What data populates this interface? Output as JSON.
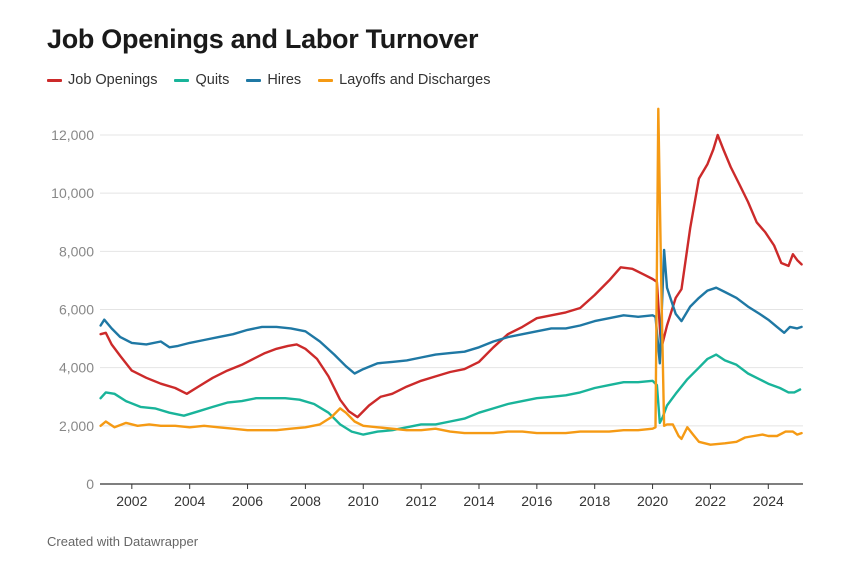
{
  "title": "Job Openings and Labor Turnover",
  "footer": "Created with Datawrapper",
  "legend": [
    {
      "name": "Job Openings",
      "color": "#cc2a2a"
    },
    {
      "name": "Quits",
      "color": "#19b49a"
    },
    {
      "name": "Hires",
      "color": "#1f78a4"
    },
    {
      "name": "Layoffs and Discharges",
      "color": "#f59a14"
    }
  ],
  "chart_data": {
    "type": "line",
    "title": "Job Openings and Labor Turnover",
    "xlabel": "",
    "ylabel": "",
    "ylim": [
      0,
      12000
    ],
    "xlim": [
      2000.9,
      2025.2
    ],
    "grid": true,
    "legend_position": "top-left",
    "x_ticks": [
      2002,
      2004,
      2006,
      2008,
      2010,
      2012,
      2014,
      2016,
      2018,
      2020,
      2022,
      2024
    ],
    "y_ticks": [
      0,
      2000,
      4000,
      6000,
      8000,
      10000,
      12000
    ],
    "y_tick_labels": [
      "0",
      "2,000",
      "4,000",
      "6,000",
      "8,000",
      "10,000",
      "12,000"
    ],
    "series": [
      {
        "name": "Job Openings",
        "color": "#cc2a2a",
        "points": [
          [
            2000.92,
            5150
          ],
          [
            2001.1,
            5200
          ],
          [
            2001.3,
            4800
          ],
          [
            2001.6,
            4400
          ],
          [
            2002.0,
            3900
          ],
          [
            2002.5,
            3650
          ],
          [
            2003.0,
            3450
          ],
          [
            2003.5,
            3300
          ],
          [
            2003.9,
            3100
          ],
          [
            2004.3,
            3350
          ],
          [
            2004.8,
            3650
          ],
          [
            2005.3,
            3900
          ],
          [
            2005.8,
            4100
          ],
          [
            2006.2,
            4300
          ],
          [
            2006.6,
            4500
          ],
          [
            2007.0,
            4650
          ],
          [
            2007.4,
            4750
          ],
          [
            2007.7,
            4800
          ],
          [
            2008.0,
            4650
          ],
          [
            2008.4,
            4300
          ],
          [
            2008.8,
            3700
          ],
          [
            2009.2,
            2900
          ],
          [
            2009.5,
            2500
          ],
          [
            2009.8,
            2300
          ],
          [
            2010.2,
            2700
          ],
          [
            2010.6,
            3000
          ],
          [
            2011.0,
            3100
          ],
          [
            2011.5,
            3350
          ],
          [
            2012.0,
            3550
          ],
          [
            2012.5,
            3700
          ],
          [
            2013.0,
            3850
          ],
          [
            2013.5,
            3950
          ],
          [
            2014.0,
            4200
          ],
          [
            2014.5,
            4700
          ],
          [
            2015.0,
            5150
          ],
          [
            2015.5,
            5400
          ],
          [
            2016.0,
            5700
          ],
          [
            2016.5,
            5800
          ],
          [
            2017.0,
            5900
          ],
          [
            2017.5,
            6050
          ],
          [
            2018.0,
            6500
          ],
          [
            2018.5,
            7000
          ],
          [
            2018.9,
            7450
          ],
          [
            2019.3,
            7400
          ],
          [
            2019.7,
            7200
          ],
          [
            2020.0,
            7050
          ],
          [
            2020.15,
            6950
          ],
          [
            2020.3,
            4650
          ],
          [
            2020.5,
            5450
          ],
          [
            2020.8,
            6400
          ],
          [
            2021.0,
            6700
          ],
          [
            2021.3,
            8800
          ],
          [
            2021.6,
            10500
          ],
          [
            2021.9,
            11000
          ],
          [
            2022.1,
            11500
          ],
          [
            2022.25,
            12000
          ],
          [
            2022.45,
            11500
          ],
          [
            2022.7,
            10900
          ],
          [
            2023.0,
            10300
          ],
          [
            2023.3,
            9700
          ],
          [
            2023.6,
            9000
          ],
          [
            2023.9,
            8650
          ],
          [
            2024.2,
            8200
          ],
          [
            2024.45,
            7600
          ],
          [
            2024.7,
            7500
          ],
          [
            2024.85,
            7900
          ],
          [
            2025.0,
            7700
          ],
          [
            2025.15,
            7550
          ]
        ]
      },
      {
        "name": "Quits",
        "color": "#19b49a",
        "points": [
          [
            2000.92,
            2950
          ],
          [
            2001.1,
            3150
          ],
          [
            2001.4,
            3100
          ],
          [
            2001.8,
            2850
          ],
          [
            2002.3,
            2650
          ],
          [
            2002.8,
            2600
          ],
          [
            2003.3,
            2450
          ],
          [
            2003.8,
            2350
          ],
          [
            2004.3,
            2500
          ],
          [
            2004.8,
            2650
          ],
          [
            2005.3,
            2800
          ],
          [
            2005.8,
            2850
          ],
          [
            2006.3,
            2950
          ],
          [
            2006.8,
            2950
          ],
          [
            2007.3,
            2950
          ],
          [
            2007.8,
            2900
          ],
          [
            2008.3,
            2750
          ],
          [
            2008.8,
            2450
          ],
          [
            2009.2,
            2050
          ],
          [
            2009.6,
            1800
          ],
          [
            2010.0,
            1700
          ],
          [
            2010.5,
            1800
          ],
          [
            2011.0,
            1850
          ],
          [
            2011.5,
            1950
          ],
          [
            2012.0,
            2050
          ],
          [
            2012.5,
            2050
          ],
          [
            2013.0,
            2150
          ],
          [
            2013.5,
            2250
          ],
          [
            2014.0,
            2450
          ],
          [
            2014.5,
            2600
          ],
          [
            2015.0,
            2750
          ],
          [
            2015.5,
            2850
          ],
          [
            2016.0,
            2950
          ],
          [
            2016.5,
            3000
          ],
          [
            2017.0,
            3050
          ],
          [
            2017.5,
            3150
          ],
          [
            2018.0,
            3300
          ],
          [
            2018.5,
            3400
          ],
          [
            2019.0,
            3500
          ],
          [
            2019.5,
            3500
          ],
          [
            2020.0,
            3550
          ],
          [
            2020.15,
            3400
          ],
          [
            2020.25,
            2100
          ],
          [
            2020.35,
            2300
          ],
          [
            2020.5,
            2700
          ],
          [
            2020.8,
            3100
          ],
          [
            2021.2,
            3600
          ],
          [
            2021.6,
            4000
          ],
          [
            2021.9,
            4300
          ],
          [
            2022.2,
            4450
          ],
          [
            2022.5,
            4250
          ],
          [
            2022.9,
            4100
          ],
          [
            2023.3,
            3800
          ],
          [
            2023.7,
            3600
          ],
          [
            2024.0,
            3450
          ],
          [
            2024.4,
            3300
          ],
          [
            2024.7,
            3150
          ],
          [
            2024.9,
            3150
          ],
          [
            2025.1,
            3250
          ]
        ]
      },
      {
        "name": "Hires",
        "color": "#1f78a4",
        "points": [
          [
            2000.92,
            5450
          ],
          [
            2001.05,
            5650
          ],
          [
            2001.3,
            5350
          ],
          [
            2001.6,
            5050
          ],
          [
            2002.0,
            4850
          ],
          [
            2002.5,
            4800
          ],
          [
            2003.0,
            4900
          ],
          [
            2003.3,
            4700
          ],
          [
            2003.6,
            4750
          ],
          [
            2004.0,
            4850
          ],
          [
            2004.5,
            4950
          ],
          [
            2005.0,
            5050
          ],
          [
            2005.5,
            5150
          ],
          [
            2006.0,
            5300
          ],
          [
            2006.5,
            5400
          ],
          [
            2007.0,
            5400
          ],
          [
            2007.5,
            5350
          ],
          [
            2008.0,
            5250
          ],
          [
            2008.5,
            4900
          ],
          [
            2009.0,
            4450
          ],
          [
            2009.4,
            4050
          ],
          [
            2009.7,
            3800
          ],
          [
            2010.0,
            3950
          ],
          [
            2010.5,
            4150
          ],
          [
            2011.0,
            4200
          ],
          [
            2011.5,
            4250
          ],
          [
            2012.0,
            4350
          ],
          [
            2012.5,
            4450
          ],
          [
            2013.0,
            4500
          ],
          [
            2013.5,
            4550
          ],
          [
            2014.0,
            4700
          ],
          [
            2014.5,
            4900
          ],
          [
            2015.0,
            5050
          ],
          [
            2015.5,
            5150
          ],
          [
            2016.0,
            5250
          ],
          [
            2016.5,
            5350
          ],
          [
            2017.0,
            5350
          ],
          [
            2017.5,
            5450
          ],
          [
            2018.0,
            5600
          ],
          [
            2018.5,
            5700
          ],
          [
            2019.0,
            5800
          ],
          [
            2019.5,
            5750
          ],
          [
            2020.0,
            5800
          ],
          [
            2020.1,
            5750
          ],
          [
            2020.25,
            4150
          ],
          [
            2020.4,
            8050
          ],
          [
            2020.5,
            6750
          ],
          [
            2020.8,
            5850
          ],
          [
            2021.0,
            5600
          ],
          [
            2021.3,
            6100
          ],
          [
            2021.6,
            6400
          ],
          [
            2021.9,
            6650
          ],
          [
            2022.2,
            6750
          ],
          [
            2022.5,
            6600
          ],
          [
            2022.9,
            6400
          ],
          [
            2023.3,
            6100
          ],
          [
            2023.7,
            5850
          ],
          [
            2024.0,
            5650
          ],
          [
            2024.3,
            5400
          ],
          [
            2024.55,
            5200
          ],
          [
            2024.75,
            5400
          ],
          [
            2025.0,
            5350
          ],
          [
            2025.15,
            5400
          ]
        ]
      },
      {
        "name": "Layoffs and Discharges",
        "color": "#f59a14",
        "points": [
          [
            2000.92,
            2000
          ],
          [
            2001.1,
            2150
          ],
          [
            2001.4,
            1950
          ],
          [
            2001.8,
            2100
          ],
          [
            2002.2,
            2000
          ],
          [
            2002.6,
            2050
          ],
          [
            2003.0,
            2000
          ],
          [
            2003.5,
            2000
          ],
          [
            2004.0,
            1950
          ],
          [
            2004.5,
            2000
          ],
          [
            2005.0,
            1950
          ],
          [
            2005.5,
            1900
          ],
          [
            2006.0,
            1850
          ],
          [
            2006.5,
            1850
          ],
          [
            2007.0,
            1850
          ],
          [
            2007.5,
            1900
          ],
          [
            2008.0,
            1950
          ],
          [
            2008.5,
            2050
          ],
          [
            2008.9,
            2300
          ],
          [
            2009.2,
            2600
          ],
          [
            2009.4,
            2450
          ],
          [
            2009.7,
            2150
          ],
          [
            2010.0,
            2000
          ],
          [
            2010.5,
            1950
          ],
          [
            2011.0,
            1900
          ],
          [
            2011.5,
            1850
          ],
          [
            2012.0,
            1850
          ],
          [
            2012.5,
            1900
          ],
          [
            2013.0,
            1800
          ],
          [
            2013.5,
            1750
          ],
          [
            2014.0,
            1750
          ],
          [
            2014.5,
            1750
          ],
          [
            2015.0,
            1800
          ],
          [
            2015.5,
            1800
          ],
          [
            2016.0,
            1750
          ],
          [
            2016.5,
            1750
          ],
          [
            2017.0,
            1750
          ],
          [
            2017.5,
            1800
          ],
          [
            2018.0,
            1800
          ],
          [
            2018.5,
            1800
          ],
          [
            2019.0,
            1850
          ],
          [
            2019.5,
            1850
          ],
          [
            2020.0,
            1900
          ],
          [
            2020.1,
            1950
          ],
          [
            2020.2,
            12900
          ],
          [
            2020.3,
            7000
          ],
          [
            2020.4,
            2000
          ],
          [
            2020.5,
            2050
          ],
          [
            2020.7,
            2050
          ],
          [
            2020.9,
            1650
          ],
          [
            2021.0,
            1550
          ],
          [
            2021.2,
            1950
          ],
          [
            2021.4,
            1700
          ],
          [
            2021.6,
            1450
          ],
          [
            2022.0,
            1350
          ],
          [
            2022.5,
            1400
          ],
          [
            2022.9,
            1450
          ],
          [
            2023.2,
            1600
          ],
          [
            2023.5,
            1650
          ],
          [
            2023.8,
            1700
          ],
          [
            2024.0,
            1650
          ],
          [
            2024.3,
            1650
          ],
          [
            2024.6,
            1800
          ],
          [
            2024.85,
            1800
          ],
          [
            2025.0,
            1700
          ],
          [
            2025.15,
            1750
          ]
        ]
      }
    ]
  }
}
